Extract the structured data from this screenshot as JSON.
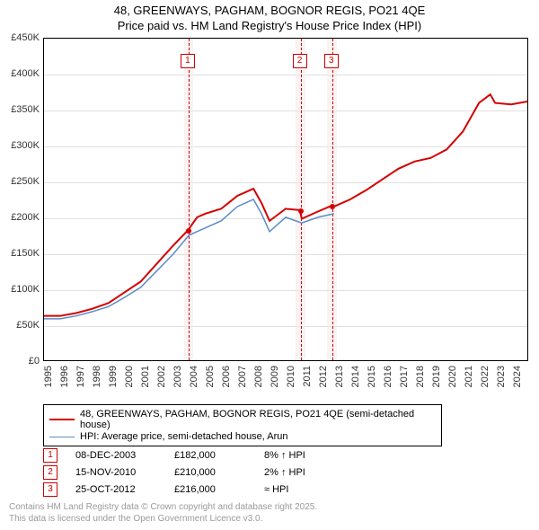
{
  "title_line1": "48, GREENWAYS, PAGHAM, BOGNOR REGIS, PO21 4QE",
  "title_line2": "Price paid vs. HM Land Registry's House Price Index (HPI)",
  "chart": {
    "type": "line",
    "background_color": "#ffffff",
    "grid_color": "#e0e0e0",
    "border_color": "#000000",
    "xlim": [
      1995,
      2025
    ],
    "ylim": [
      0,
      450000
    ],
    "ytick_step": 50000,
    "yticks": [
      "£0",
      "£50K",
      "£100K",
      "£150K",
      "£200K",
      "£250K",
      "£300K",
      "£350K",
      "£400K",
      "£450K"
    ],
    "xticks": [
      1995,
      1996,
      1997,
      1998,
      1999,
      2000,
      2001,
      2002,
      2003,
      2004,
      2005,
      2006,
      2007,
      2008,
      2009,
      2010,
      2011,
      2012,
      2013,
      2014,
      2015,
      2016,
      2017,
      2018,
      2019,
      2020,
      2021,
      2022,
      2023,
      2024
    ],
    "tick_fontsize": 11,
    "line_width_red": 2,
    "line_width_blue": 1.5,
    "color_red": "#d40000",
    "color_blue": "#5a8cc8",
    "marker_band_color": "#f8e6e6",
    "marker_line_color": "#cc0000",
    "series_red": [
      [
        1995,
        62000
      ],
      [
        1996,
        62000
      ],
      [
        1997,
        66000
      ],
      [
        1998,
        72000
      ],
      [
        1999,
        80000
      ],
      [
        2000,
        95000
      ],
      [
        2001,
        110000
      ],
      [
        2002,
        135000
      ],
      [
        2003,
        160000
      ],
      [
        2003.94,
        182000
      ],
      [
        2004.5,
        200000
      ],
      [
        2005,
        205000
      ],
      [
        2006,
        212000
      ],
      [
        2007,
        230000
      ],
      [
        2008,
        240000
      ],
      [
        2008.5,
        220000
      ],
      [
        2009,
        195000
      ],
      [
        2010,
        212000
      ],
      [
        2010.87,
        210000
      ],
      [
        2011,
        198000
      ],
      [
        2012,
        208000
      ],
      [
        2012.82,
        216000
      ],
      [
        2013,
        215000
      ],
      [
        2014,
        225000
      ],
      [
        2015,
        238000
      ],
      [
        2016,
        253000
      ],
      [
        2017,
        268000
      ],
      [
        2018,
        278000
      ],
      [
        2019,
        283000
      ],
      [
        2020,
        295000
      ],
      [
        2021,
        320000
      ],
      [
        2022,
        360000
      ],
      [
        2022.7,
        372000
      ],
      [
        2023,
        360000
      ],
      [
        2024,
        358000
      ],
      [
        2025,
        362000
      ]
    ],
    "series_blue": [
      [
        1995,
        58000
      ],
      [
        1996,
        58000
      ],
      [
        1997,
        62000
      ],
      [
        1998,
        68000
      ],
      [
        1999,
        75000
      ],
      [
        2000,
        88000
      ],
      [
        2001,
        102000
      ],
      [
        2002,
        125000
      ],
      [
        2003,
        148000
      ],
      [
        2004,
        175000
      ],
      [
        2005,
        185000
      ],
      [
        2006,
        195000
      ],
      [
        2007,
        215000
      ],
      [
        2008,
        225000
      ],
      [
        2008.5,
        205000
      ],
      [
        2009,
        180000
      ],
      [
        2010,
        200000
      ],
      [
        2011,
        192000
      ],
      [
        2012,
        200000
      ],
      [
        2013,
        205000
      ]
    ],
    "sale_points": [
      {
        "x": 2003.94,
        "y": 182000
      },
      {
        "x": 2010.87,
        "y": 210000
      },
      {
        "x": 2012.82,
        "y": 216000
      }
    ],
    "markers": [
      {
        "id": "1",
        "x": 2003.94,
        "band_width": 0.6
      },
      {
        "id": "2",
        "x": 2010.87,
        "band_width": 0.6
      },
      {
        "id": "3",
        "x": 2012.82,
        "band_width": 0.6
      }
    ]
  },
  "legend": {
    "items": [
      {
        "color": "#d40000",
        "width": 2,
        "label": "48, GREENWAYS, PAGHAM, BOGNOR REGIS, PO21 4QE (semi-detached house)"
      },
      {
        "color": "#5a8cc8",
        "width": 1.5,
        "label": "HPI: Average price, semi-detached house, Arun"
      }
    ]
  },
  "sales": [
    {
      "id": "1",
      "date": "08-DEC-2003",
      "price": "£182,000",
      "delta": "8% ↑ HPI"
    },
    {
      "id": "2",
      "date": "15-NOV-2010",
      "price": "£210,000",
      "delta": "2% ↑ HPI"
    },
    {
      "id": "3",
      "date": "25-OCT-2012",
      "price": "£216,000",
      "delta": "≈ HPI"
    }
  ],
  "footer_line1": "Contains HM Land Registry data © Crown copyright and database right 2025.",
  "footer_line2": "This data is licensed under the Open Government Licence v3.0."
}
